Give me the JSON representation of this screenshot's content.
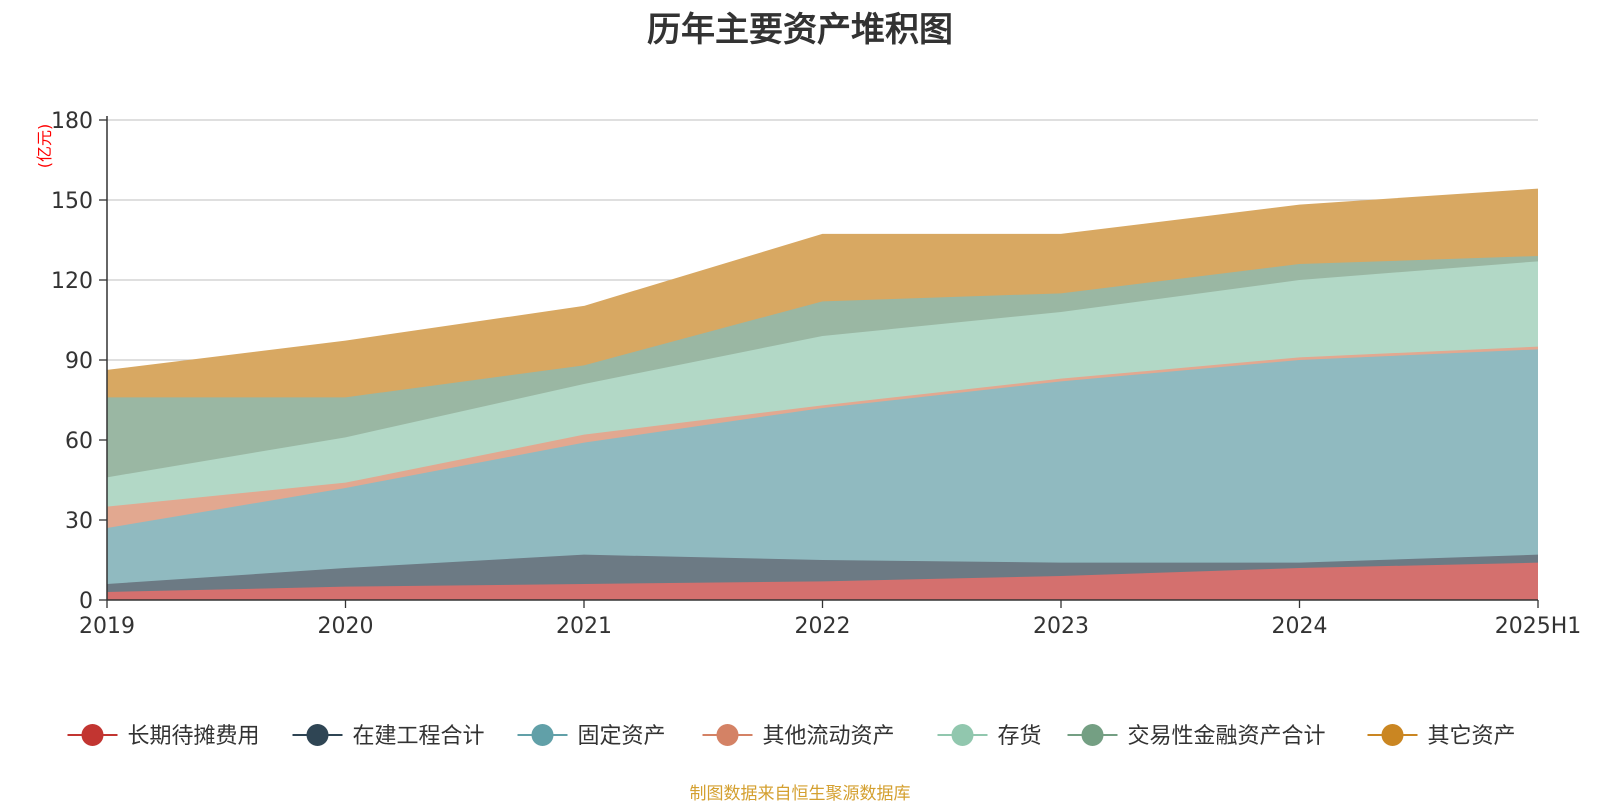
{
  "source_note": "制图数据来自恒生聚源数据库",
  "chart_data": {
    "type": "area",
    "stacked": true,
    "title": "历年主要资产堆积图",
    "ylabel": "(亿元)",
    "ylabel_color": "#ff0000",
    "xlabel": "",
    "categories": [
      "2019",
      "2020",
      "2021",
      "2022",
      "2023",
      "2024",
      "2025H1"
    ],
    "ylim": [
      0,
      180
    ],
    "yticks": [
      0,
      30,
      60,
      90,
      120,
      150,
      180
    ],
    "grid": true,
    "legend_position": "bottom",
    "series": [
      {
        "name": "长期待摊费用",
        "color": "#c23531",
        "fill": "#d4706e",
        "values": [
          3,
          5,
          6,
          7,
          9,
          12,
          14
        ]
      },
      {
        "name": "在建工程合计",
        "color": "#2f4554",
        "fill": "#6c7a84",
        "values": [
          3,
          7,
          11,
          8,
          5,
          2,
          3
        ]
      },
      {
        "name": "固定资产",
        "color": "#61a0a8",
        "fill": "#90bac0",
        "values": [
          21,
          30,
          42,
          57,
          68,
          76,
          77
        ]
      },
      {
        "name": "其他流动资产",
        "color": "#d48265",
        "fill": "#e2a890",
        "values": [
          8,
          2,
          3,
          1,
          1,
          1,
          1
        ]
      },
      {
        "name": "存货",
        "color": "#91c7ae",
        "fill": "#b2d8c6",
        "values": [
          11,
          17,
          19,
          26,
          25,
          29,
          32
        ]
      },
      {
        "name": "交易性金融资产合计",
        "color": "#749f83",
        "fill": "#9ab7a3",
        "values": [
          30,
          15,
          7,
          13,
          7,
          6,
          2
        ]
      },
      {
        "name": "其它资产",
        "color": "#ca8622",
        "fill": "#d8a862",
        "values": [
          10,
          21,
          22,
          25,
          22,
          22,
          25
        ]
      }
    ]
  }
}
